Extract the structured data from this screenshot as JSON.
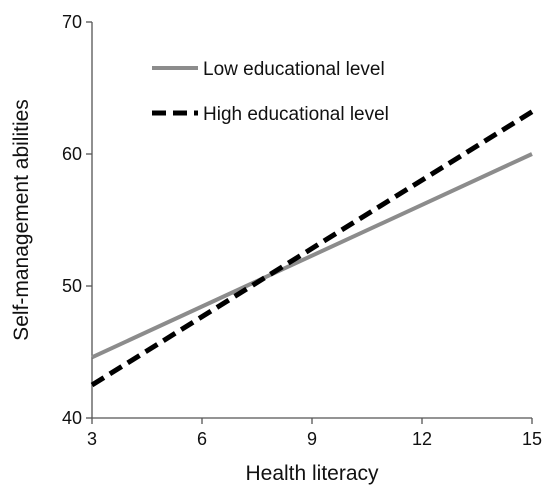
{
  "chart_data": {
    "type": "line",
    "xlabel": "Health literacy",
    "ylabel": "Self-management abilities",
    "xlim": [
      3,
      15
    ],
    "ylim": [
      40,
      70
    ],
    "x_ticks": [
      3,
      6,
      9,
      12,
      15
    ],
    "y_ticks": [
      40,
      50,
      60,
      70
    ],
    "grid": false,
    "legend_position": "top-left",
    "series": [
      {
        "name": "Low educational level",
        "x": [
          3,
          15
        ],
        "values": [
          44.6,
          60.0
        ],
        "color": "#8c8c8c",
        "style": "solid"
      },
      {
        "name": "High educational level",
        "x": [
          3,
          15
        ],
        "values": [
          42.5,
          63.2
        ],
        "color": "#000000",
        "style": "dashed"
      }
    ]
  }
}
